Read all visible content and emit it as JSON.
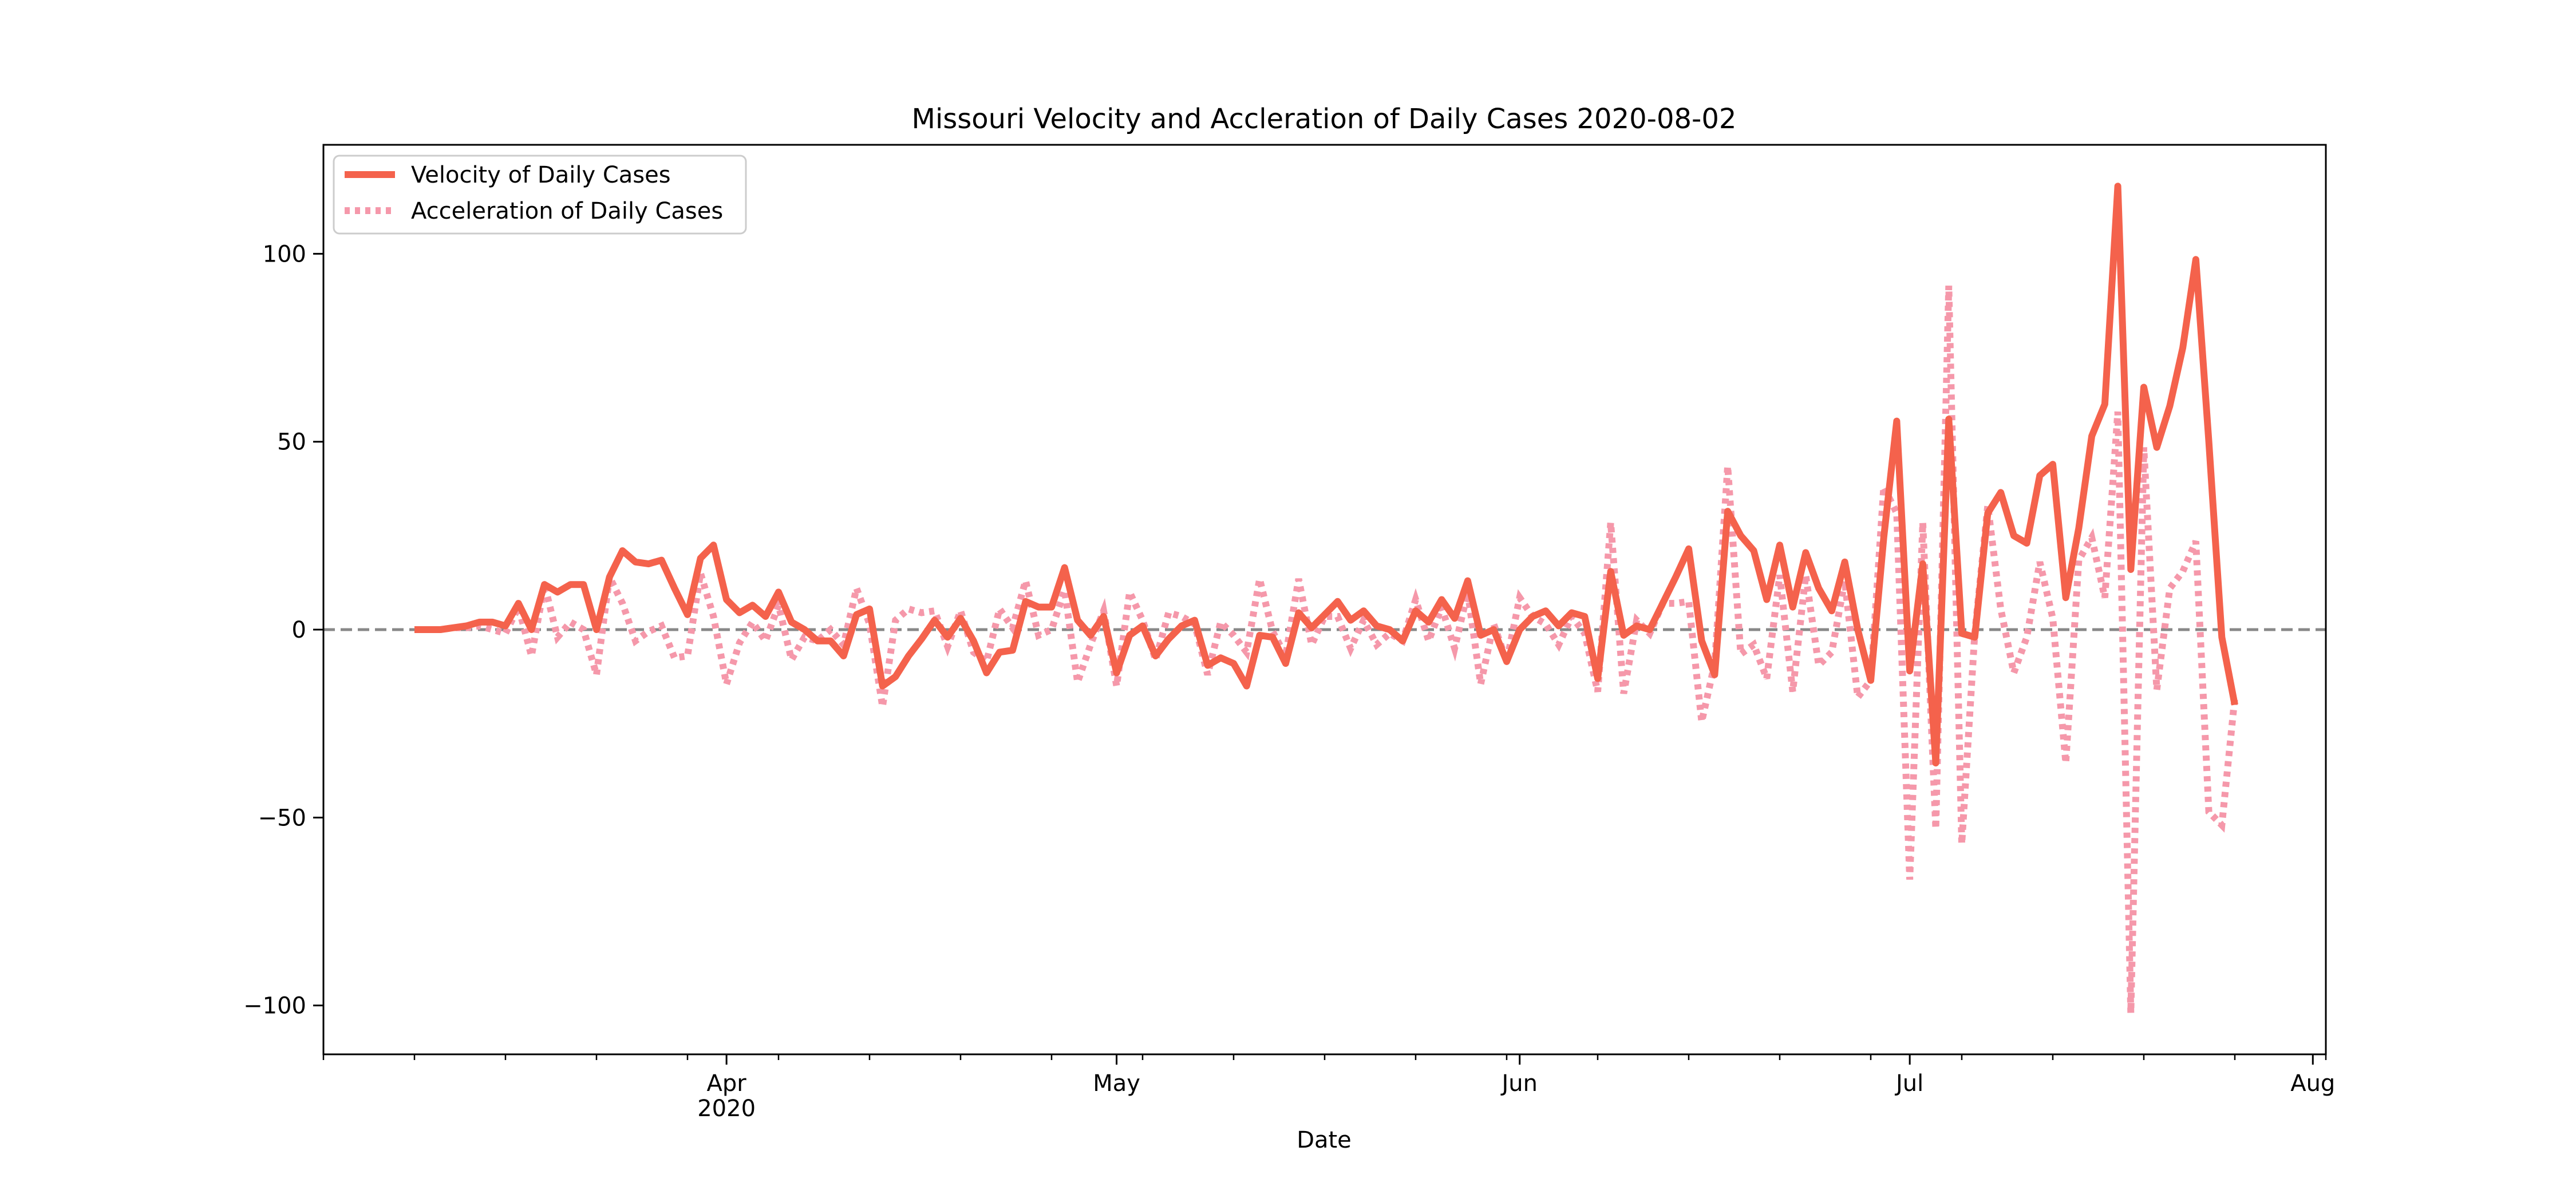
{
  "colors": {
    "velocity": "#f4624c",
    "acceleration": "#f598aa",
    "zero_line": "#888888"
  },
  "chart_data": {
    "type": "line",
    "title": "Missouri Velocity and Accleration of Daily Cases 2020-08-02",
    "xlabel": "Date",
    "ylabel": "",
    "x_range": [
      "2020-03-01",
      "2020-08-02"
    ],
    "ylim": [
      -113,
      129
    ],
    "yticks": [
      -100,
      -50,
      0,
      50,
      100
    ],
    "ytick_labels": [
      "−100",
      "−50",
      "0",
      "50",
      "100"
    ],
    "xticks": [
      {
        "date": "2020-04-01",
        "label": "Apr",
        "sublabel": "2020"
      },
      {
        "date": "2020-05-01",
        "label": "May",
        "sublabel": ""
      },
      {
        "date": "2020-06-01",
        "label": "Jun",
        "sublabel": ""
      },
      {
        "date": "2020-07-01",
        "label": "Jul",
        "sublabel": ""
      },
      {
        "date": "2020-08-01",
        "label": "Aug",
        "sublabel": ""
      }
    ],
    "legend_position": "top-left",
    "grid": false,
    "start_date": "2020-03-08",
    "series": [
      {
        "name": "Velocity of Daily Cases",
        "style": "solid",
        "values": [
          0,
          0,
          0,
          0.5,
          1,
          2,
          2,
          1,
          7,
          0,
          12,
          10,
          12,
          12,
          0,
          14,
          21,
          18,
          17.5,
          18.5,
          11,
          4,
          19,
          22.5,
          8,
          4.5,
          6.5,
          3.5,
          10,
          2,
          0,
          -3,
          -3,
          -7,
          4,
          5.5,
          -15,
          -12.5,
          -7,
          -2.5,
          2.5,
          -2,
          3,
          -3,
          -11.5,
          -6,
          -5.5,
          7.5,
          6,
          6,
          16.5,
          2.5,
          -1.5,
          3.5,
          -11.5,
          -1.5,
          1,
          -7,
          -2.5,
          1,
          2.5,
          -9.5,
          -7.5,
          -9,
          -15,
          -1.5,
          -2,
          -9,
          4.5,
          0.5,
          4,
          7.5,
          2.5,
          5,
          1,
          0,
          -3,
          5,
          2,
          8,
          3,
          13,
          -1.5,
          0,
          -8.5,
          0,
          3.5,
          5,
          1,
          4.5,
          3.5,
          -13,
          15.5,
          -1.5,
          1,
          0,
          7,
          14,
          21.5,
          -3,
          -12,
          31.5,
          25,
          21,
          8,
          22.5,
          6,
          20.5,
          11,
          5,
          18,
          0,
          -13.5,
          24.5,
          55.5,
          -11,
          17.5,
          -35.5,
          56,
          -1,
          -2,
          31,
          36.5,
          25,
          23,
          41,
          44,
          8.5,
          27,
          51.5,
          60,
          118,
          16,
          64.5,
          48.5,
          59.5,
          75,
          98.5,
          50,
          -2,
          -20
        ]
      },
      {
        "name": "Acceleration of Daily Cases",
        "style": "dotted",
        "values": [
          0,
          0,
          0,
          0.5,
          0.5,
          1,
          0,
          -1,
          6,
          -7,
          12,
          -2,
          2,
          0,
          -12,
          14,
          7,
          -3,
          -0.5,
          1,
          -7.5,
          -7,
          15,
          3.5,
          -14.5,
          -3.5,
          2,
          -3,
          6.5,
          -8,
          -2,
          -3,
          0,
          -4,
          11,
          1.5,
          -20.5,
          2.5,
          5.5,
          4.5,
          5,
          -4.5,
          5,
          -6,
          -8.5,
          5.5,
          0.5,
          13,
          -1.5,
          0,
          10.5,
          -14,
          -4,
          5,
          -15,
          10,
          2.5,
          -8,
          4.5,
          3.5,
          1.5,
          -12,
          2,
          -1.5,
          -6,
          13.5,
          -0.5,
          -7,
          13.5,
          -4,
          3.5,
          3.5,
          -5,
          2.5,
          -4,
          -1,
          -3,
          8,
          -3,
          6,
          -5,
          10,
          -14.5,
          1.5,
          -8.5,
          8.5,
          3.5,
          1.5,
          -4,
          3.5,
          -1,
          -16.5,
          28.5,
          -17,
          2.5,
          -1,
          7,
          7,
          7.5,
          -24.5,
          -9,
          43.5,
          -6.5,
          -4,
          -13,
          14.5,
          -16.5,
          14.5,
          -9.5,
          -6,
          13,
          -18,
          -13.5,
          38,
          31,
          -66.5,
          28.5,
          -53,
          91.5,
          -57,
          -1,
          33,
          5.5,
          -11.5,
          -2,
          18,
          3,
          -35.5,
          18.5,
          24.5,
          8.5,
          58,
          -102,
          48.5,
          -16,
          11,
          15.5,
          23.5,
          -48.5,
          -52,
          -18
        ]
      }
    ]
  }
}
